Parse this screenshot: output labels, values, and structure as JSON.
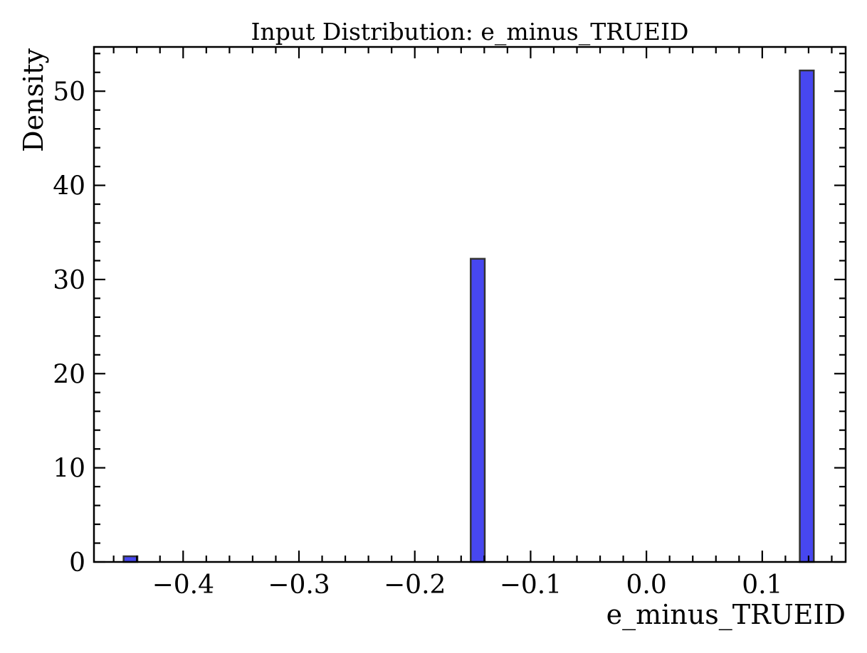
{
  "chart_data": {
    "type": "bar",
    "title": "Input Distribution: e_minus_TRUEID",
    "xlabel": "e_minus_TRUEID",
    "ylabel": "Density",
    "xlim": [
      -0.477,
      0.172
    ],
    "ylim": [
      0,
      54.7
    ],
    "x_ticks": [
      -0.4,
      -0.3,
      -0.2,
      -0.1,
      0.0,
      0.1
    ],
    "x_tick_labels": [
      "−0.4",
      "−0.3",
      "−0.2",
      "−0.1",
      "0.0",
      "0.1"
    ],
    "y_ticks": [
      0,
      10,
      20,
      30,
      40,
      50
    ],
    "y_tick_labels": [
      "0",
      "10",
      "20",
      "30",
      "40",
      "50"
    ],
    "bar_color": "#3333ee",
    "edge_color": "#333333",
    "grid": false,
    "bins": [
      {
        "x0": -0.4514,
        "x1": -0.4395,
        "value": 0.6
      },
      {
        "x0": -0.1517,
        "x1": -0.1396,
        "value": 32.2
      },
      {
        "x0": 0.1324,
        "x1": 0.1445,
        "value": 52.2
      }
    ]
  }
}
